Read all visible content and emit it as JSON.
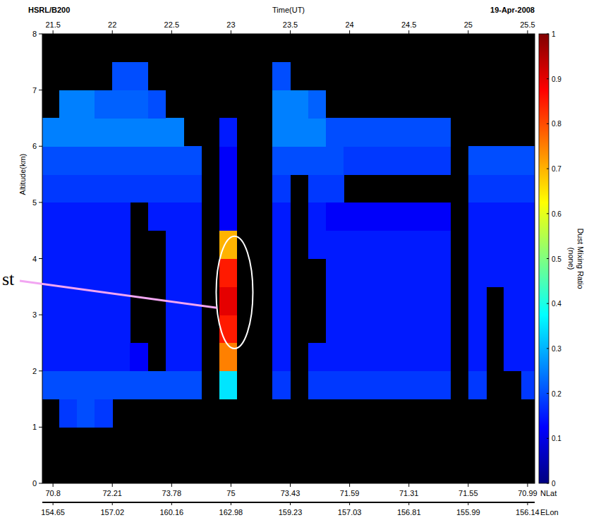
{
  "chart_data": {
    "type": "heatmap",
    "title": "HSRL/B200",
    "subtitle": "19-Apr-2008",
    "x_label": "Time(UT)",
    "y_label": "Altitude(km)",
    "annotation": "st",
    "xlim": [
      21.41,
      25.56
    ],
    "xticks": [
      21.5,
      22,
      22.5,
      23,
      23.5,
      24,
      24.5,
      25,
      25.5
    ],
    "ylim": [
      0,
      8
    ],
    "yticks": [
      0,
      1,
      2,
      3,
      4,
      5,
      6,
      7,
      8
    ],
    "x": [
      21.475,
      21.625,
      21.775,
      21.925,
      22.075,
      22.225,
      22.375,
      22.525,
      22.675,
      22.825,
      22.975,
      23.125,
      23.275,
      23.425,
      23.575,
      23.725,
      23.875,
      24.025,
      24.175,
      24.325,
      24.475,
      24.625,
      24.775,
      24.925,
      25.075,
      25.225,
      25.375,
      25.525
    ],
    "y": [
      0.25,
      0.75,
      1.25,
      1.75,
      2.25,
      2.75,
      3.25,
      3.75,
      4.25,
      4.75,
      5.25,
      5.75,
      6.25,
      6.75,
      7.25,
      7.75
    ],
    "cells": [
      [
        null,
        null,
        null,
        null,
        null,
        null,
        null,
        null,
        null,
        null,
        null,
        null,
        null,
        null,
        null,
        null,
        null,
        null,
        null,
        null,
        null,
        null,
        null,
        null,
        null,
        null,
        null,
        null
      ],
      [
        null,
        null,
        null,
        null,
        null,
        null,
        null,
        null,
        null,
        null,
        null,
        null,
        null,
        null,
        null,
        null,
        null,
        null,
        null,
        null,
        null,
        null,
        null,
        null,
        null,
        null,
        null,
        null
      ],
      [
        null,
        0.18,
        0.2,
        0.18,
        null,
        null,
        null,
        null,
        null,
        null,
        null,
        null,
        null,
        null,
        null,
        null,
        null,
        null,
        null,
        null,
        null,
        null,
        null,
        null,
        null,
        null,
        null,
        null
      ],
      [
        0.2,
        0.2,
        0.2,
        0.2,
        0.2,
        0.2,
        0.2,
        0.2,
        0.2,
        null,
        0.35,
        null,
        null,
        0.18,
        null,
        0.18,
        0.18,
        0.18,
        0.18,
        0.18,
        0.18,
        0.18,
        0.18,
        null,
        0.18,
        null,
        null,
        0.18
      ],
      [
        0.15,
        0.15,
        0.15,
        0.15,
        0.15,
        0.12,
        null,
        0.15,
        0.15,
        null,
        0.75,
        null,
        null,
        0.15,
        null,
        0.15,
        0.15,
        0.15,
        0.15,
        0.15,
        0.15,
        0.15,
        0.15,
        null,
        0.15,
        null,
        0.15,
        0.15
      ],
      [
        0.15,
        0.15,
        0.15,
        0.15,
        0.15,
        null,
        null,
        0.15,
        0.15,
        null,
        0.85,
        null,
        null,
        0.15,
        null,
        null,
        0.15,
        0.15,
        0.15,
        0.15,
        0.15,
        0.15,
        0.15,
        null,
        0.15,
        null,
        0.15,
        0.15
      ],
      [
        0.15,
        0.15,
        0.15,
        0.15,
        0.15,
        null,
        null,
        0.15,
        0.15,
        null,
        0.9,
        null,
        null,
        0.15,
        null,
        null,
        0.15,
        0.15,
        0.15,
        0.15,
        0.15,
        0.15,
        0.15,
        null,
        0.15,
        null,
        0.15,
        0.15
      ],
      [
        0.15,
        0.15,
        0.15,
        0.15,
        0.15,
        null,
        null,
        0.15,
        0.15,
        null,
        0.85,
        null,
        null,
        0.15,
        null,
        null,
        0.15,
        0.15,
        0.15,
        0.15,
        0.15,
        0.15,
        0.15,
        null,
        0.15,
        0.15,
        0.15,
        0.15
      ],
      [
        0.15,
        0.15,
        0.15,
        0.15,
        0.15,
        null,
        null,
        0.15,
        0.15,
        null,
        0.7,
        null,
        null,
        0.15,
        null,
        0.15,
        0.15,
        0.15,
        0.15,
        0.15,
        0.15,
        0.15,
        0.15,
        null,
        0.15,
        0.15,
        0.15,
        0.15
      ],
      [
        0.15,
        0.15,
        0.15,
        0.15,
        0.15,
        null,
        0.15,
        0.15,
        0.15,
        null,
        0.12,
        null,
        null,
        0.15,
        null,
        0.15,
        0.12,
        0.12,
        0.12,
        0.12,
        0.12,
        0.12,
        0.12,
        null,
        0.15,
        0.15,
        0.15,
        0.15
      ],
      [
        0.18,
        0.18,
        0.18,
        0.18,
        0.18,
        0.18,
        0.18,
        0.18,
        0.18,
        null,
        0.12,
        null,
        null,
        0.18,
        null,
        0.18,
        0.18,
        null,
        null,
        null,
        null,
        null,
        null,
        null,
        0.18,
        0.18,
        0.18,
        0.18
      ],
      [
        0.2,
        0.2,
        0.2,
        0.2,
        0.2,
        0.2,
        0.2,
        0.2,
        0.2,
        null,
        0.12,
        null,
        null,
        0.2,
        0.2,
        0.2,
        0.2,
        0.18,
        0.18,
        0.18,
        0.18,
        0.18,
        0.18,
        null,
        0.2,
        0.2,
        0.2,
        0.2
      ],
      [
        0.25,
        0.25,
        0.25,
        0.25,
        0.25,
        0.25,
        0.25,
        0.25,
        null,
        null,
        0.15,
        null,
        null,
        0.25,
        0.25,
        0.25,
        0.2,
        0.2,
        0.2,
        0.2,
        0.2,
        0.2,
        0.2,
        null,
        null,
        null,
        null,
        null
      ],
      [
        null,
        0.25,
        0.25,
        0.22,
        0.22,
        0.22,
        0.2,
        null,
        null,
        null,
        null,
        null,
        null,
        0.25,
        0.25,
        0.22,
        null,
        null,
        null,
        null,
        null,
        null,
        null,
        null,
        null,
        null,
        null,
        null
      ],
      [
        null,
        null,
        null,
        null,
        0.2,
        0.2,
        null,
        null,
        null,
        null,
        null,
        null,
        null,
        0.2,
        null,
        null,
        null,
        null,
        null,
        null,
        null,
        null,
        null,
        null,
        null,
        null,
        null,
        null
      ],
      [
        null,
        null,
        null,
        null,
        null,
        null,
        null,
        null,
        null,
        null,
        null,
        null,
        null,
        null,
        null,
        null,
        null,
        null,
        null,
        null,
        null,
        null,
        null,
        null,
        null,
        null,
        null,
        null
      ]
    ],
    "color_range": [
      0,
      1
    ],
    "color_ticks": [
      0,
      0.1,
      0.2,
      0.3,
      0.4,
      0.5,
      0.6,
      0.7,
      0.8,
      0.9,
      1
    ],
    "color_label": "Dust Mixing Ratio (none)",
    "lat_label": "NLat",
    "lat": [
      70.8,
      72.21,
      73.78,
      75,
      73.43,
      71.59,
      71.31,
      71.55,
      70.99
    ],
    "lon_label": "ELon",
    "lon": [
      154.65,
      157.02,
      160.16,
      162.98,
      159.23,
      157.03,
      156.81,
      155.99,
      156.14
    ]
  }
}
